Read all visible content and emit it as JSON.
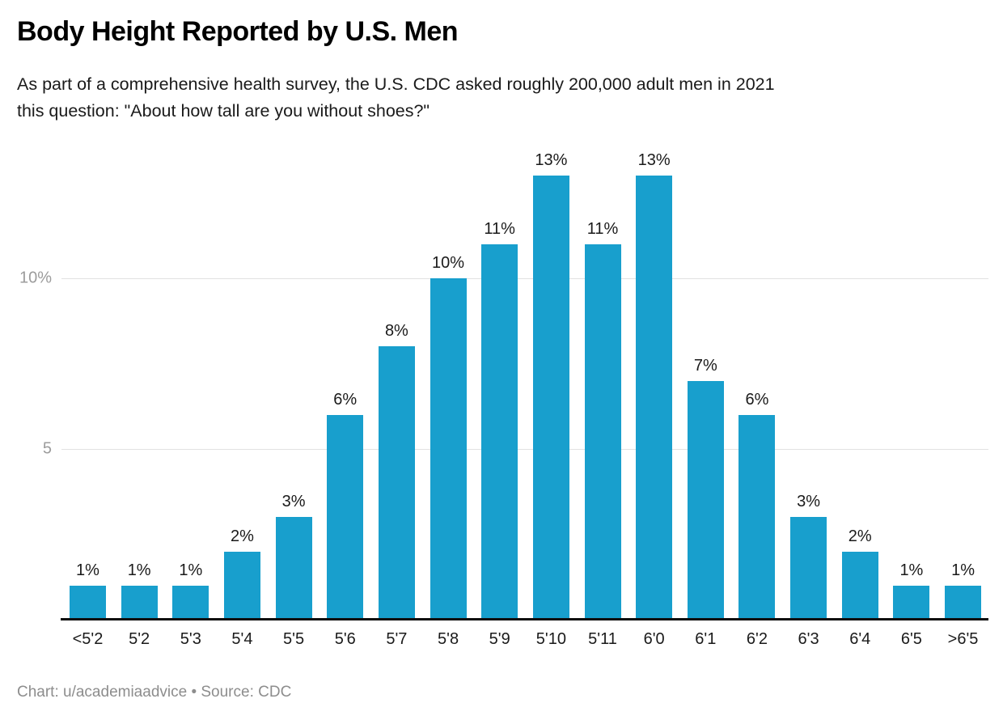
{
  "header": {
    "title": "Body Height Reported by U.S. Men",
    "subtitle_line1": "As part of a comprehensive health survey, the U.S. CDC asked roughly 200,000 adult men in 2021",
    "subtitle_line2": "this question: \"About how tall are you without shoes?\""
  },
  "chart_data": {
    "type": "bar",
    "title": "Body Height Reported by U.S. Men",
    "categories": [
      "<5'2",
      "5'2",
      "5'3",
      "5'4",
      "5'5",
      "5'6",
      "5'7",
      "5'8",
      "5'9",
      "5'10",
      "5'11",
      "6'0",
      "6'1",
      "6'2",
      "6'3",
      "6'4",
      "6'5",
      ">6'5"
    ],
    "values": [
      1,
      1,
      1,
      2,
      3,
      6,
      8,
      10,
      11,
      13,
      11,
      13,
      7,
      6,
      3,
      2,
      1,
      1
    ],
    "value_labels": [
      "1%",
      "1%",
      "1%",
      "2%",
      "3%",
      "6%",
      "8%",
      "10%",
      "11%",
      "13%",
      "11%",
      "13%",
      "7%",
      "6%",
      "3%",
      "2%",
      "1%",
      "1%"
    ],
    "xlabel": "",
    "ylabel": "",
    "ylim": [
      0,
      14
    ],
    "yticks": [
      {
        "value": 5,
        "label": "5"
      },
      {
        "value": 10,
        "label": "10%"
      }
    ],
    "grid": "horizontal-only",
    "legend": "none",
    "bar_color": "#189fcd"
  },
  "footer": {
    "credit": "Chart: u/academiaadvice • Source: CDC"
  },
  "colors": {
    "bar": "#189fcd",
    "gridline": "#e2e2e2",
    "axis_tick_text": "#9c9c9c",
    "baseline": "#0f0f0f",
    "label_text": "#1a1a1a",
    "footer_text": "#8d8d8d",
    "background": "#ffffff"
  }
}
